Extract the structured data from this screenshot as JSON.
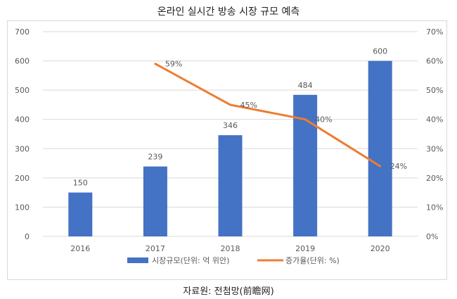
{
  "title": "온라인 실시간 방송 시장 규모 예측",
  "source": "자료원: 전첨망(前瞻网)",
  "chart_data": {
    "type": "bar",
    "categories": [
      "2016",
      "2017",
      "2018",
      "2019",
      "2020"
    ],
    "series": [
      {
        "name": "시장규모(단위: 억 위안)",
        "type": "bar",
        "axis": "left",
        "values": [
          150,
          239,
          346,
          484,
          600
        ],
        "color": "#4472C4"
      },
      {
        "name": "증가율(단위: %)",
        "type": "line",
        "axis": "right",
        "values": [
          null,
          59,
          45,
          40,
          24
        ],
        "labels": [
          "",
          "59%",
          "45%",
          "40%",
          "24%"
        ],
        "color": "#ED7D31"
      }
    ],
    "y_left": {
      "min": 0,
      "max": 700,
      "ticks": [
        "0",
        "100",
        "200",
        "300",
        "400",
        "500",
        "600",
        "700"
      ]
    },
    "y_right": {
      "min": 0,
      "max": 70,
      "ticks": [
        "0%",
        "10%",
        "20%",
        "30%",
        "40%",
        "50%",
        "60%",
        "70%"
      ]
    },
    "grid": true,
    "legend_position": "bottom"
  }
}
